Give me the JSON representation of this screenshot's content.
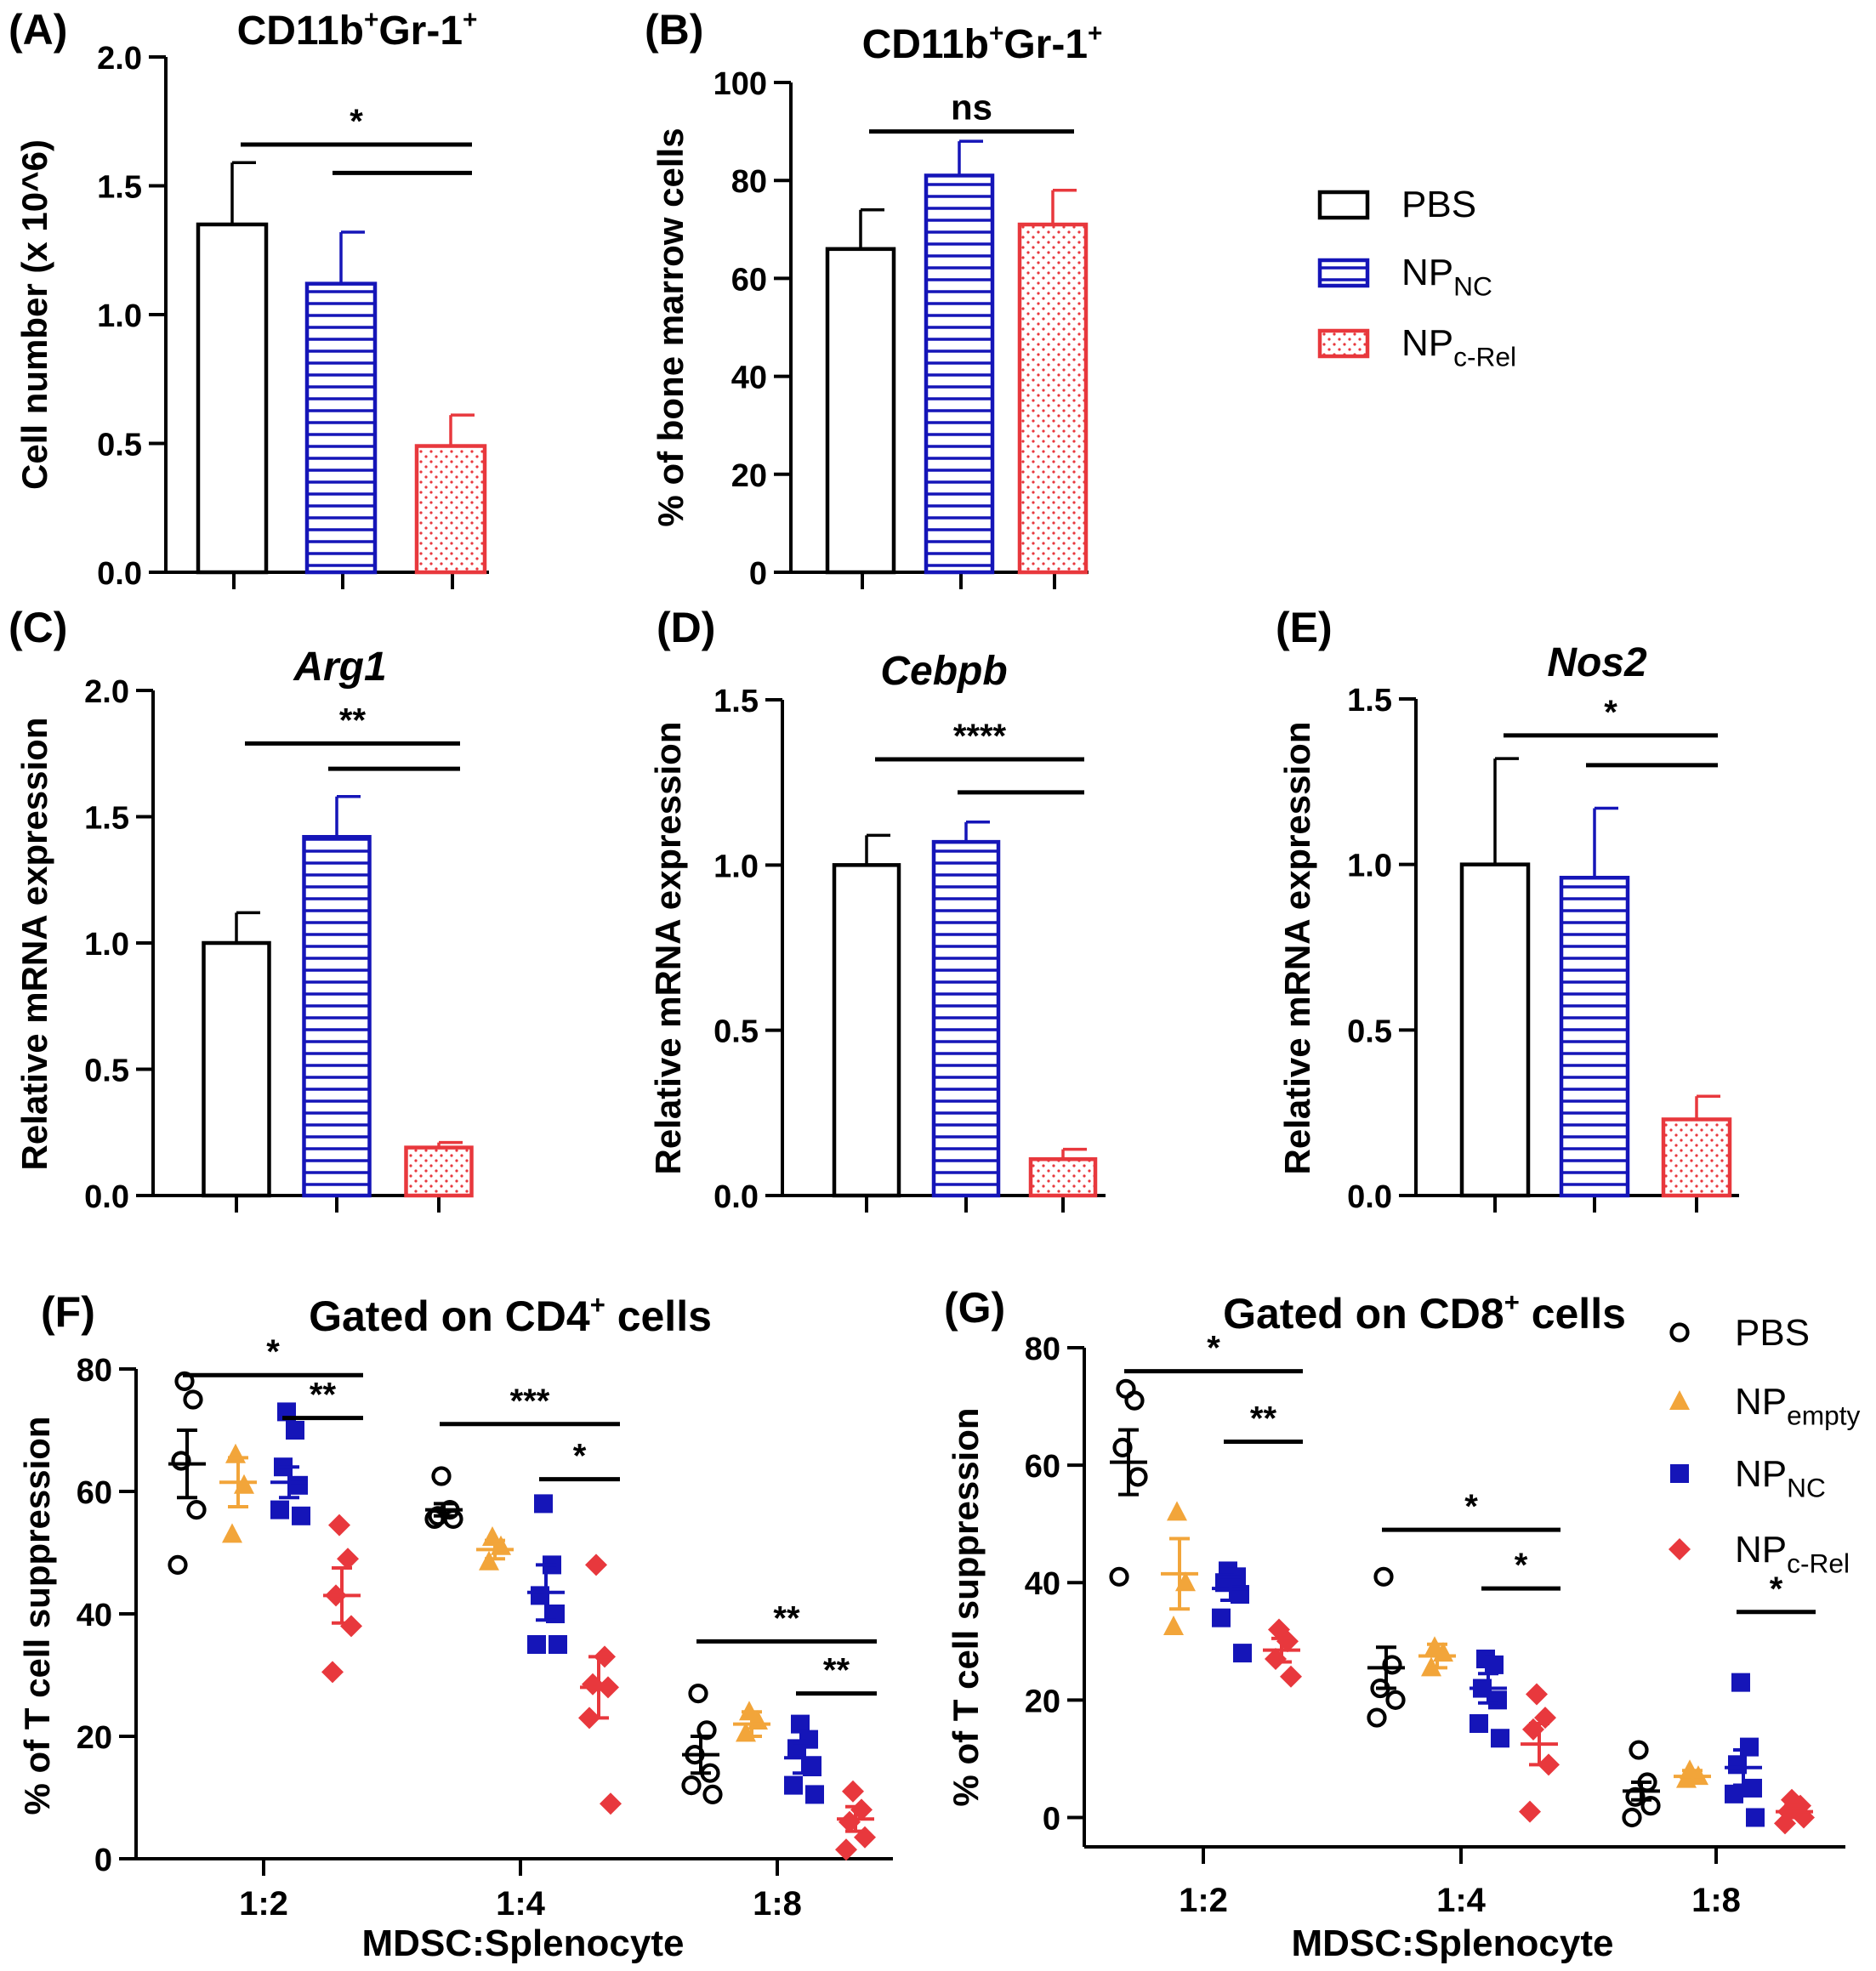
{
  "colors": {
    "pbs": "#000000",
    "np_nc": "#1515B8",
    "np_crel": "#E8383D",
    "np_empty": "#F2A53A"
  },
  "legend_bar": [
    {
      "key": "pbs",
      "label": "PBS",
      "sub": ""
    },
    {
      "key": "np_nc",
      "label": "NP",
      "sub": "NC"
    },
    {
      "key": "np_crel",
      "label": "NP",
      "sub": "c-Rel"
    }
  ],
  "legend_scatter": [
    {
      "key": "pbs",
      "marker": "circle",
      "label": "PBS",
      "sub": ""
    },
    {
      "key": "np_empty",
      "marker": "triangle",
      "label": "NP",
      "sub": "empty"
    },
    {
      "key": "np_nc",
      "marker": "square",
      "label": "NP",
      "sub": "NC"
    },
    {
      "key": "np_crel",
      "marker": "diamond",
      "label": "NP",
      "sub": "c-Rel"
    }
  ],
  "chart_data": [
    {
      "panel": "(A)",
      "type": "bar",
      "title": {
        "main": "CD11b",
        "sup1": "+",
        "mid": "Gr-1",
        "sup2": "+"
      },
      "ylabel": "Cell number (x 10^6)",
      "ylim": [
        0,
        2.0
      ],
      "yticks": [
        "0.0",
        "0.5",
        "1.0",
        "1.5",
        "2.0"
      ],
      "ytick_values": [
        0,
        0.5,
        1.0,
        1.5,
        2.0
      ],
      "groups": [
        "PBS",
        "NP_NC",
        "NP_c-Rel"
      ],
      "values": [
        1.35,
        1.12,
        0.49
      ],
      "errors": [
        0.24,
        0.2,
        0.12
      ],
      "significance": [
        {
          "from": 0,
          "to": 2,
          "label": "*",
          "y": 1.66
        },
        {
          "from": 1,
          "to": 2,
          "label": "",
          "y": 1.55
        }
      ]
    },
    {
      "panel": "(B)",
      "type": "bar",
      "title": {
        "main": "CD11b",
        "sup1": "+",
        "mid": "Gr-1",
        "sup2": "+"
      },
      "ylabel": "% of bone marrow cells",
      "ylim": [
        0,
        100
      ],
      "yticks": [
        "0",
        "20",
        "40",
        "60",
        "80",
        "100"
      ],
      "ytick_values": [
        0,
        20,
        40,
        60,
        80,
        100
      ],
      "groups": [
        "PBS",
        "NP_NC",
        "NP_c-Rel"
      ],
      "values": [
        66,
        81,
        71
      ],
      "errors": [
        8,
        7,
        7
      ],
      "significance": [
        {
          "from": 0,
          "to": 2,
          "label": "ns",
          "y": 90
        }
      ]
    },
    {
      "panel": "(C)",
      "type": "bar",
      "title": {
        "main": "Arg1",
        "italic": true
      },
      "ylabel": "Relative mRNA expression",
      "ylim": [
        0,
        2.0
      ],
      "yticks": [
        "0.0",
        "0.5",
        "1.0",
        "1.5",
        "2.0"
      ],
      "ytick_values": [
        0,
        0.5,
        1.0,
        1.5,
        2.0
      ],
      "groups": [
        "PBS",
        "NP_NC",
        "NP_c-Rel"
      ],
      "values": [
        1.0,
        1.42,
        0.19
      ],
      "errors": [
        0.12,
        0.16,
        0.02
      ],
      "significance": [
        {
          "from": 0,
          "to": 2,
          "label": "**",
          "y": 1.79
        },
        {
          "from": 1,
          "to": 2,
          "label": "",
          "y": 1.69
        }
      ]
    },
    {
      "panel": "(D)",
      "type": "bar",
      "title": {
        "main": "Cebpb",
        "italic": true
      },
      "ylabel": "Relative mRNA expression",
      "ylim": [
        0,
        1.5
      ],
      "yticks": [
        "0.0",
        "0.5",
        "1.0",
        "1.5"
      ],
      "ytick_values": [
        0,
        0.5,
        1.0,
        1.5
      ],
      "groups": [
        "PBS",
        "NP_NC",
        "NP_c-Rel"
      ],
      "values": [
        1.0,
        1.07,
        0.11
      ],
      "errors": [
        0.09,
        0.06,
        0.03
      ],
      "significance": [
        {
          "from": 0,
          "to": 2,
          "label": "****",
          "y": 1.32
        },
        {
          "from": 1,
          "to": 2,
          "label": "",
          "y": 1.22
        }
      ]
    },
    {
      "panel": "(E)",
      "type": "bar",
      "title": {
        "main": "Nos2",
        "italic": true
      },
      "ylabel": "Relative mRNA expression",
      "ylim": [
        0,
        1.5
      ],
      "yticks": [
        "0.0",
        "0.5",
        "1.0",
        "1.5"
      ],
      "ytick_values": [
        0,
        0.5,
        1.0,
        1.5
      ],
      "groups": [
        "PBS",
        "NP_NC",
        "NP_c-Rel"
      ],
      "values": [
        1.0,
        0.96,
        0.23
      ],
      "errors": [
        0.32,
        0.21,
        0.07
      ],
      "significance": [
        {
          "from": 0,
          "to": 2,
          "label": "*",
          "y": 1.39
        },
        {
          "from": 1,
          "to": 2,
          "label": "",
          "y": 1.3
        }
      ]
    },
    {
      "panel": "(F)",
      "type": "scatter",
      "title": {
        "main": "Gated on CD4",
        "sup1": "+",
        "mid": " cells"
      },
      "ylabel": "% of T cell suppression",
      "xlabel": "MDSC:Splenocyte",
      "ylim": [
        0,
        80
      ],
      "yticks": [
        "0",
        "20",
        "40",
        "60",
        "80"
      ],
      "ytick_values": [
        0,
        20,
        40,
        60,
        80
      ],
      "categories": [
        "1:2",
        "1:4",
        "1:8"
      ],
      "series": [
        {
          "key": "pbs",
          "marker": "circle",
          "means": [
            64.5,
            57,
            17
          ],
          "sems": [
            5.5,
            1,
            3
          ],
          "points": [
            [
              78,
              75,
              65,
              57,
              48
            ],
            [
              62.5,
              57,
              56,
              55.5,
              55.5
            ],
            [
              27,
              21,
              17,
              14,
              12,
              10.5
            ]
          ]
        },
        {
          "key": "np_empty",
          "marker": "triangle",
          "means": [
            61.5,
            50.5,
            22
          ],
          "sems": [
            4,
            1.5,
            2
          ],
          "points": [
            [
              66,
              61,
              53
            ],
            [
              52.5,
              51,
              48.5
            ],
            [
              24,
              22.5,
              20.5
            ]
          ]
        },
        {
          "key": "np_nc",
          "marker": "square",
          "means": [
            61.5,
            43.5,
            16.5
          ],
          "sems": [
            2.5,
            4.5,
            2.5
          ],
          "points": [
            [
              73,
              70,
              64,
              61,
              57,
              56
            ],
            [
              58,
              48,
              43,
              40,
              35,
              35
            ],
            [
              22,
              19.5,
              18,
              15,
              12,
              10.5
            ]
          ]
        },
        {
          "key": "np_crel",
          "marker": "diamond",
          "means": [
            43,
            28,
            6.5
          ],
          "sems": [
            4.5,
            5,
            2
          ],
          "points": [
            [
              54.5,
              49,
              43,
              38,
              30.5
            ],
            [
              48,
              33,
              28.5,
              28,
              23,
              9
            ],
            [
              11,
              8,
              6,
              3.5,
              1.5
            ]
          ]
        }
      ],
      "significance": [
        {
          "cat": 0,
          "from": 0,
          "to": 3,
          "label": "*",
          "y": 79
        },
        {
          "cat": 0,
          "from": 2,
          "to": 3,
          "label": "**",
          "y": 72
        },
        {
          "cat": 1,
          "from": 0,
          "to": 3,
          "label": "***",
          "y": 71
        },
        {
          "cat": 1,
          "from": 2,
          "to": 3,
          "label": "*",
          "y": 62
        },
        {
          "cat": 2,
          "from": 0,
          "to": 3,
          "label": "**",
          "y": 35.5
        },
        {
          "cat": 2,
          "from": 2,
          "to": 3,
          "label": "**",
          "y": 27
        }
      ]
    },
    {
      "panel": "(G)",
      "type": "scatter",
      "title": {
        "main": "Gated on CD8",
        "sup1": "+",
        "mid": " cells"
      },
      "ylabel": "% of T cell suppression",
      "xlabel": "MDSC:Splenocyte",
      "ylim": [
        -5,
        80
      ],
      "yticks": [
        "0",
        "20",
        "40",
        "60",
        "80"
      ],
      "ytick_values": [
        0,
        20,
        40,
        60,
        80
      ],
      "categories": [
        "1:2",
        "1:4",
        "1:8"
      ],
      "series": [
        {
          "key": "pbs",
          "marker": "circle",
          "means": [
            60.5,
            25.5,
            4.5
          ],
          "sems": [
            5.5,
            3.5,
            1.5
          ],
          "points": [
            [
              73,
              71,
              63,
              58,
              41
            ],
            [
              41,
              26,
              22,
              20,
              17
            ],
            [
              11.5,
              6,
              3.5,
              2,
              0
            ]
          ]
        },
        {
          "key": "np_empty",
          "marker": "triangle",
          "means": [
            41.5,
            27.5,
            7
          ],
          "sems": [
            6,
            2,
            1
          ],
          "points": [
            [
              52,
              40,
              32.5
            ],
            [
              29,
              28,
              25.5
            ],
            [
              8,
              7,
              6.5
            ]
          ]
        },
        {
          "key": "np_nc",
          "marker": "square",
          "means": [
            39,
            22,
            8.5
          ],
          "sems": [
            2,
            2.5,
            3
          ],
          "points": [
            [
              42,
              41,
              40,
              38,
              34,
              28
            ],
            [
              27,
              26,
              22,
              20,
              16,
              13.5
            ],
            [
              23,
              12,
              9,
              5,
              4,
              0
            ]
          ]
        },
        {
          "key": "np_crel",
          "marker": "diamond",
          "means": [
            28.5,
            12.5,
            1
          ],
          "sems": [
            2,
            3.5,
            1
          ],
          "points": [
            [
              32,
              30,
              27,
              24
            ],
            [
              21,
              17,
              15,
              9,
              1
            ],
            [
              3,
              2,
              1,
              0,
              -1
            ]
          ]
        }
      ],
      "significance": [
        {
          "cat": 0,
          "from": 0,
          "to": 3,
          "label": "*",
          "y": 76
        },
        {
          "cat": 0,
          "from": 2,
          "to": 3,
          "label": "**",
          "y": 64
        },
        {
          "cat": 1,
          "from": 0,
          "to": 3,
          "label": "*",
          "y": 49
        },
        {
          "cat": 1,
          "from": 2,
          "to": 3,
          "label": "*",
          "y": 39
        },
        {
          "cat": 2,
          "from": 2,
          "to": 3,
          "label": "*",
          "y": 35
        }
      ]
    }
  ]
}
